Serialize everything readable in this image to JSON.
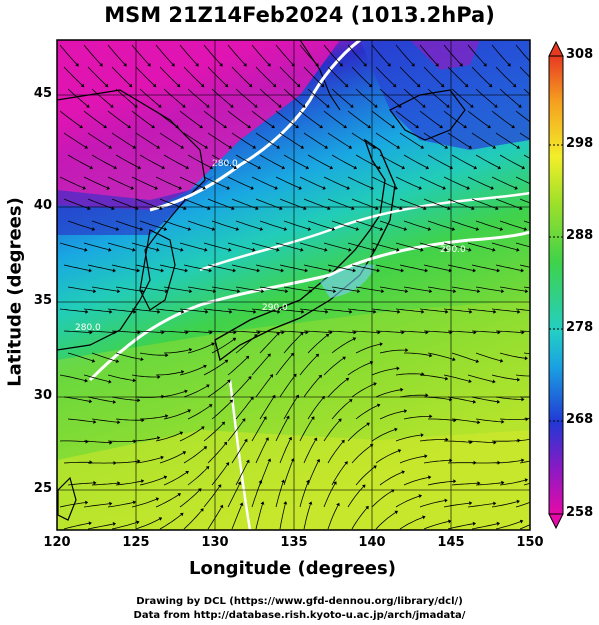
{
  "title": "MSM 21Z14Feb2024 (1013.2hPa)",
  "map": {
    "xlabel": "Longitude (degrees)",
    "ylabel": "Latitude  (degrees)",
    "xticks": [
      "120",
      "125",
      "130",
      "135",
      "140",
      "145",
      "150"
    ],
    "yticks": [
      "25",
      "30",
      "35",
      "40",
      "45"
    ],
    "contour_labels": [
      "290.0",
      "290.0",
      "280.0",
      "280.0"
    ]
  },
  "colorbar": {
    "ticks": [
      "258",
      "268",
      "278",
      "288",
      "298",
      "308"
    ],
    "colors": [
      "#e60aa8",
      "#6a1fc9",
      "#1f3fd6",
      "#19b8e0",
      "#28d0b0",
      "#3fd24a",
      "#a6e02a",
      "#f2ee2a",
      "#f5a020",
      "#e83a22"
    ]
  },
  "credits": {
    "line1": "Drawing by DCL (https://www.gfd-dennou.org/library/dcl/)",
    "line2": "Data from http://database.rish.kyoto-u.ac.jp/arch/jmadata/"
  }
}
